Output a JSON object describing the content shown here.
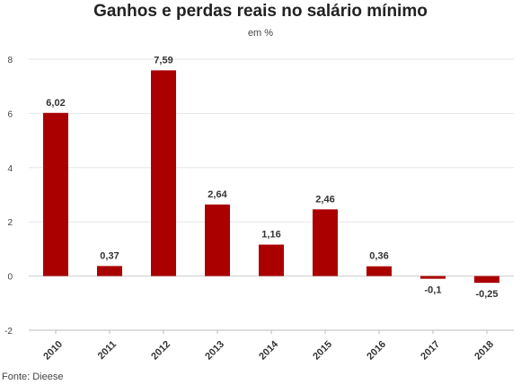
{
  "chart_data": {
    "type": "bar",
    "title": "Ganhos e perdas reais no salário mínimo",
    "subtitle": "em %",
    "source": "Fonte: Dieese",
    "categories": [
      "2010",
      "2011",
      "2012",
      "2013",
      "2014",
      "2015",
      "2016",
      "2017",
      "2018"
    ],
    "values": [
      6.02,
      0.37,
      7.59,
      2.64,
      1.16,
      2.46,
      0.36,
      -0.1,
      -0.25
    ],
    "data_labels": [
      "6,02",
      "0,37",
      "7,59",
      "2,64",
      "1,16",
      "2,46",
      "0,36",
      "-0,1",
      "-0,25"
    ],
    "yticks": [
      8,
      6,
      4,
      2,
      0,
      -2
    ],
    "ylim": [
      -2,
      8
    ],
    "grid": true,
    "bar_color": "#aa0000"
  }
}
